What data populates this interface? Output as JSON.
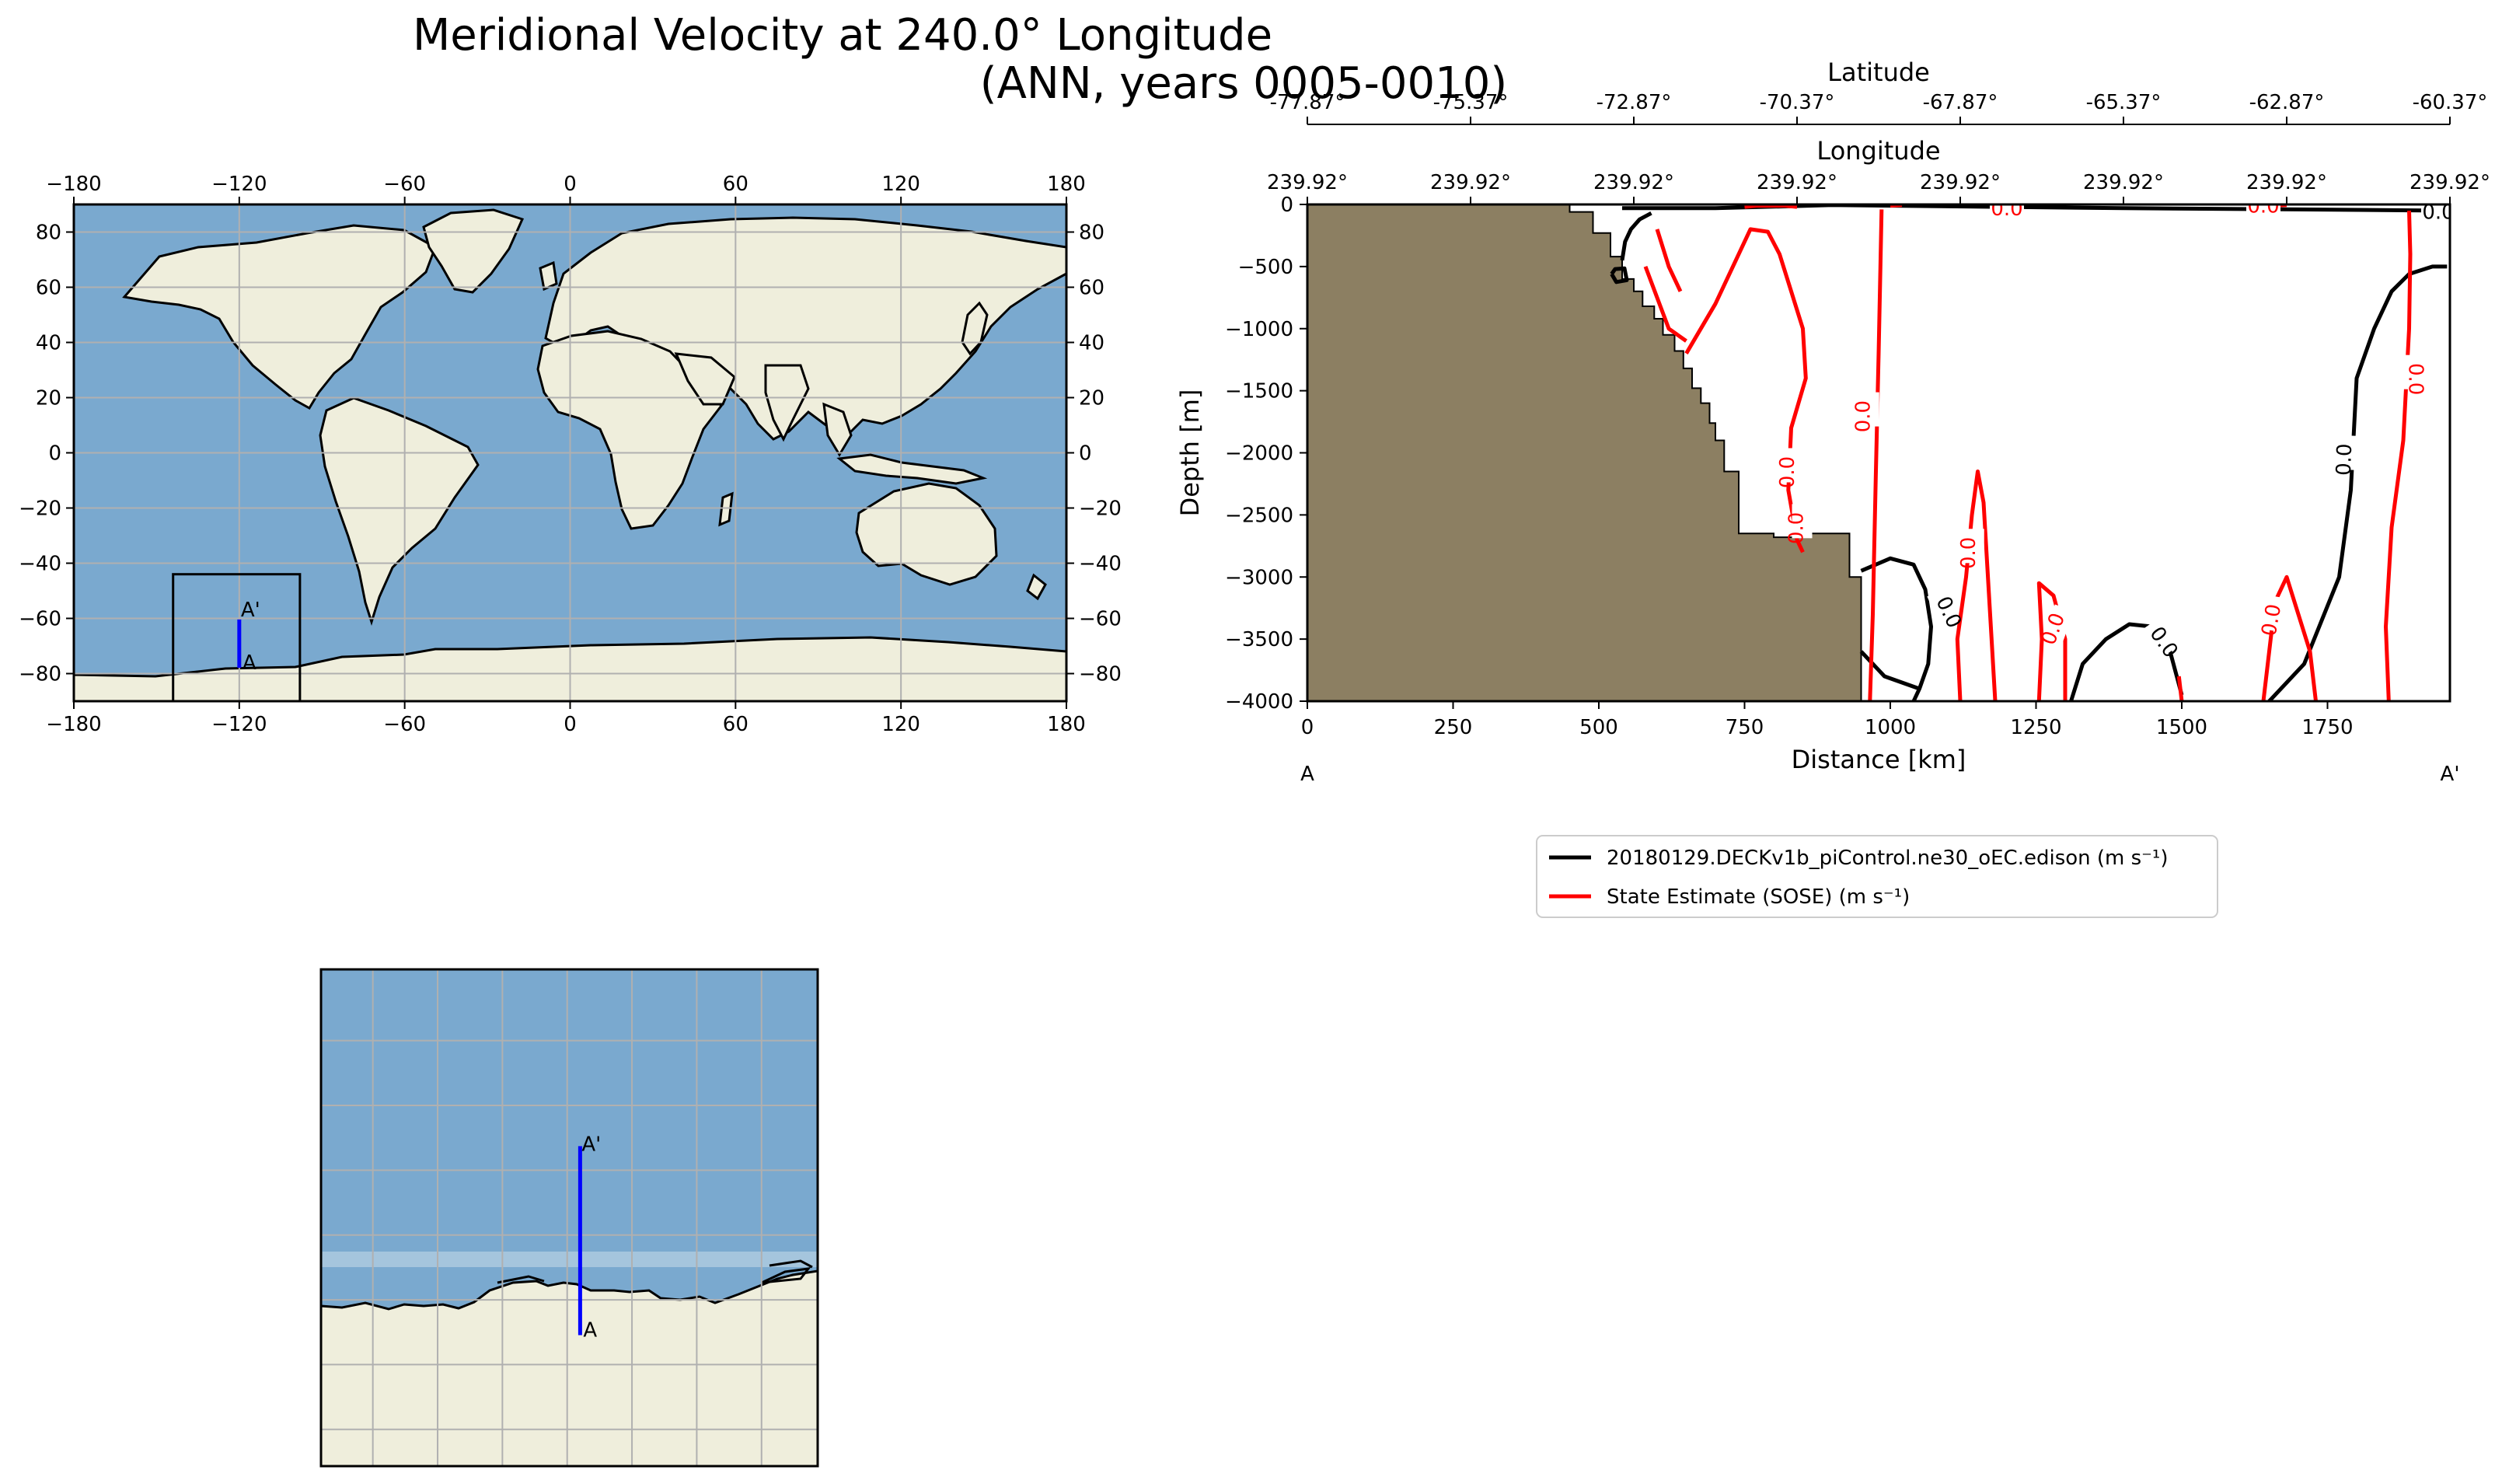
{
  "title": {
    "line1": "Meridional Velocity at 240.0° Longitude",
    "line2": "(ANN, years 0005-0010)"
  },
  "colors": {
    "ocean": "#7aa9cf",
    "land": "#efeedc",
    "bathymetry": "#8c7f62",
    "model_contour": "#000000",
    "obs_contour": "#ff0000",
    "transect": "#0000ff",
    "grid": "#b0b0b0"
  },
  "chart_data": [
    {
      "type": "map",
      "name": "global",
      "projection": "PlateCarree",
      "xlim": [
        -180,
        180
      ],
      "ylim": [
        -90,
        90
      ],
      "x_ticks": [
        "−180",
        "−120",
        "−60",
        "0",
        "60",
        "120",
        "180"
      ],
      "y_ticks": [
        "80",
        "60",
        "40",
        "20",
        "0",
        "−20",
        "−40",
        "−60",
        "−80"
      ],
      "grid": true,
      "inset_box": {
        "lon": [
          -144,
          -98
        ],
        "lat": [
          -90,
          -44
        ]
      },
      "transect": {
        "lon": [
          -120,
          -120
        ],
        "lat": [
          -77.87,
          -60.37
        ]
      },
      "endpoint_labels": [
        "A",
        "A'"
      ]
    },
    {
      "type": "map",
      "name": "zoom",
      "projection": "PlateCarree",
      "xlim": [
        -144,
        -98
      ],
      "ylim": [
        -90,
        -44
      ],
      "grid": true,
      "transect": {
        "lon": [
          -120,
          -120
        ],
        "lat": [
          -77.87,
          -60.37
        ]
      },
      "endpoint_labels": [
        "A",
        "A'"
      ]
    },
    {
      "type": "contour",
      "name": "transect-section",
      "xlabel": "Distance [km]",
      "ylabel": "Depth [m]",
      "xlim": [
        0,
        1960
      ],
      "ylim": [
        -4000,
        0
      ],
      "x_ticks": [
        0,
        250,
        500,
        750,
        1000,
        1250,
        1500,
        1750
      ],
      "y_ticks": [
        0,
        -500,
        -1000,
        -1500,
        -2000,
        -2500,
        -3000,
        -3500,
        -4000
      ],
      "top_axis_longitude": {
        "label": "Longitude",
        "tick_positions_km": [
          0,
          280,
          560,
          840,
          1120,
          1400,
          1680,
          1960
        ],
        "tick_labels": [
          "239.92°",
          "239.92°",
          "239.92°",
          "239.92°",
          "239.92°",
          "239.92°",
          "239.92°",
          "239.92°"
        ]
      },
      "top_axis_latitude": {
        "label": "Latitude",
        "tick_positions_km": [
          0,
          280,
          560,
          840,
          1120,
          1400,
          1680,
          1960
        ],
        "tick_labels": [
          "-77.87°",
          "-75.37°",
          "-72.87°",
          "-70.37°",
          "-67.87°",
          "-65.37°",
          "-62.87°",
          "-60.37°"
        ]
      },
      "endpoint_labels": {
        "start": "A",
        "end": "A'"
      },
      "bathymetry": [
        [
          450,
          0
        ],
        [
          450,
          -60
        ],
        [
          490,
          -60
        ],
        [
          490,
          -230
        ],
        [
          520,
          -230
        ],
        [
          520,
          -420
        ],
        [
          540,
          -420
        ],
        [
          540,
          -600
        ],
        [
          560,
          -600
        ],
        [
          560,
          -700
        ],
        [
          575,
          -700
        ],
        [
          575,
          -820
        ],
        [
          595,
          -820
        ],
        [
          595,
          -920
        ],
        [
          610,
          -920
        ],
        [
          610,
          -1050
        ],
        [
          630,
          -1050
        ],
        [
          630,
          -1180
        ],
        [
          645,
          -1180
        ],
        [
          645,
          -1320
        ],
        [
          660,
          -1320
        ],
        [
          660,
          -1480
        ],
        [
          675,
          -1480
        ],
        [
          675,
          -1600
        ],
        [
          690,
          -1600
        ],
        [
          690,
          -1760
        ],
        [
          700,
          -1760
        ],
        [
          700,
          -1900
        ],
        [
          715,
          -1900
        ],
        [
          715,
          -2150
        ],
        [
          740,
          -2150
        ],
        [
          740,
          -2650
        ],
        [
          800,
          -2650
        ],
        [
          800,
          -2680
        ],
        [
          860,
          -2680
        ],
        [
          860,
          -2650
        ],
        [
          930,
          -2650
        ],
        [
          930,
          -3000
        ],
        [
          950,
          -3000
        ],
        [
          950,
          -4000
        ]
      ],
      "contour_level": 0.0,
      "series": [
        {
          "name": "20180129.DECKv1b_piControl.ne30_oEC.edison (m s⁻¹)",
          "color": "#000000",
          "lines": [
            [
              [
                540,
                -30
              ],
              [
                700,
                -30
              ],
              [
                900,
                -5
              ],
              [
                1400,
                -30
              ],
              [
                1700,
                -40
              ],
              [
                1955,
                -50
              ]
            ],
            [
              [
                522,
                -560
              ],
              [
                528,
                -520
              ],
              [
                544,
                -515
              ],
              [
                548,
                -610
              ],
              [
                530,
                -625
              ],
              [
                522,
                -560
              ]
            ],
            [
              [
                540,
                -450
              ],
              [
                545,
                -300
              ],
              [
                555,
                -200
              ],
              [
                570,
                -120
              ],
              [
                590,
                -70
              ]
            ],
            [
              [
                950,
                -2950
              ],
              [
                1000,
                -2850
              ],
              [
                1040,
                -2900
              ],
              [
                1060,
                -3100
              ],
              [
                1070,
                -3400
              ],
              [
                1065,
                -3700
              ],
              [
                1050,
                -3900
              ],
              [
                1040,
                -4000
              ]
            ],
            [
              [
                950,
                -3600
              ],
              [
                990,
                -3800
              ],
              [
                1050,
                -3900
              ]
            ],
            [
              [
                1310,
                -4000
              ],
              [
                1330,
                -3700
              ],
              [
                1370,
                -3500
              ],
              [
                1410,
                -3380
              ],
              [
                1450,
                -3400
              ],
              [
                1480,
                -3600
              ],
              [
                1500,
                -3950
              ]
            ],
            [
              [
                1650,
                -4000
              ],
              [
                1710,
                -3700
              ],
              [
                1770,
                -3000
              ],
              [
                1790,
                -2300
              ],
              [
                1800,
                -1400
              ],
              [
                1830,
                -1000
              ],
              [
                1860,
                -700
              ],
              [
                1890,
                -560
              ],
              [
                1930,
                -500
              ],
              [
                1955,
                -500
              ]
            ]
          ],
          "labels": [
            {
              "text": "0.0",
              "x": 1940,
              "y": -60,
              "rot": 0
            },
            {
              "text": "0.0",
              "x": 1090,
              "y": -3250,
              "rot": 65
            },
            {
              "text": "0.0",
              "x": 1460,
              "y": -3500,
              "rot": 55
            },
            {
              "text": "0.0",
              "x": 1790,
              "y": -2000,
              "rot": -88
            }
          ]
        },
        {
          "name": "State Estimate (SOSE) (m s⁻¹)",
          "color": "#ff0000",
          "lines": [
            [
              [
                750,
                -20
              ],
              [
                770,
                -10
              ],
              [
                820,
                -10
              ],
              [
                840,
                -20
              ]
            ],
            [
              [
                1000,
                -10
              ],
              [
                1020,
                -5
              ]
            ],
            [
              [
                1620,
                -20
              ],
              [
                1650,
                -10
              ],
              [
                1680,
                -5
              ]
            ],
            [
              [
                580,
                -500
              ],
              [
                620,
                -1000
              ],
              [
                650,
                -1100
              ]
            ],
            [
              [
                600,
                -200
              ],
              [
                620,
                -500
              ],
              [
                640,
                -700
              ]
            ],
            [
              [
                650,
                -1200
              ],
              [
                700,
                -800
              ],
              [
                740,
                -400
              ],
              [
                760,
                -200
              ],
              [
                790,
                -220
              ],
              [
                810,
                -400
              ],
              [
                830,
                -700
              ],
              [
                850,
                -1000
              ],
              [
                855,
                -1400
              ],
              [
                830,
                -1800
              ],
              [
                825,
                -2300
              ],
              [
                840,
                -2700
              ],
              [
                850,
                -2800
              ]
            ],
            [
              [
                965,
                -4000
              ],
              [
                970,
                -3300
              ],
              [
                975,
                -2200
              ],
              [
                980,
                -1200
              ],
              [
                983,
                -500
              ],
              [
                985,
                -40
              ]
            ],
            [
              [
                1120,
                -4000
              ],
              [
                1115,
                -3500
              ],
              [
                1130,
                -3000
              ],
              [
                1140,
                -2500
              ],
              [
                1150,
                -2150
              ],
              [
                1160,
                -2400
              ],
              [
                1170,
                -3200
              ],
              [
                1180,
                -4000
              ]
            ],
            [
              [
                1255,
                -4000
              ],
              [
                1260,
                -3500
              ],
              [
                1255,
                -3050
              ],
              [
                1280,
                -3150
              ],
              [
                1300,
                -3500
              ],
              [
                1300,
                -4000
              ]
            ],
            [
              [
                1500,
                -4000
              ],
              [
                1495,
                -3800
              ]
            ],
            [
              [
                1640,
                -4000
              ],
              [
                1650,
                -3600
              ],
              [
                1660,
                -3200
              ],
              [
                1680,
                -3000
              ],
              [
                1700,
                -3300
              ],
              [
                1720,
                -3600
              ],
              [
                1730,
                -4000
              ]
            ],
            [
              [
                1855,
                -4000
              ],
              [
                1850,
                -3400
              ],
              [
                1860,
                -2600
              ],
              [
                1880,
                -1900
              ],
              [
                1890,
                -1000
              ],
              [
                1892,
                -400
              ],
              [
                1890,
                -50
              ]
            ]
          ],
          "labels": [
            {
              "text": "0.0",
              "x": 965,
              "y": -1650,
              "rot": -90
            },
            {
              "text": "0.0",
              "x": 835,
              "y": -2100,
              "rot": -90
            },
            {
              "text": "0.0",
              "x": 850,
              "y": -2550,
              "rot": -90
            },
            {
              "text": "0.0",
              "x": 1145,
              "y": -2750,
              "rot": -90
            },
            {
              "text": "0.0",
              "x": 1290,
              "y": -3380,
              "rot": -70
            },
            {
              "text": "0.0",
              "x": 1665,
              "y": -3300,
              "rot": -80
            },
            {
              "text": "0.0",
              "x": 1890,
              "y": -1350,
              "rot": 90
            },
            {
              "text": "0.0",
              "x": 1200,
              "y": -30,
              "rot": 0
            },
            {
              "text": "0.0",
              "x": 1640,
              "y": -10,
              "rot": 0
            }
          ]
        }
      ]
    }
  ]
}
